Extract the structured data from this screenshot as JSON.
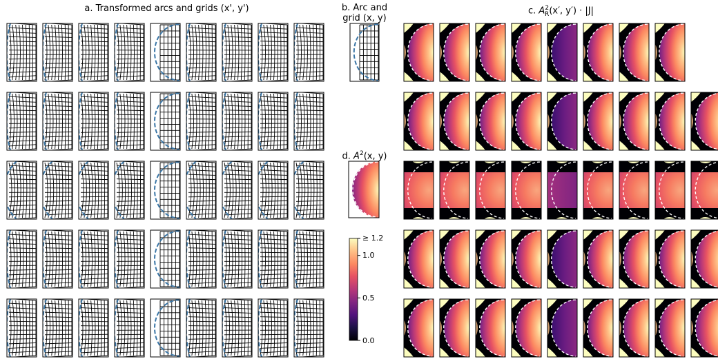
{
  "panels": {
    "a": {
      "title": "a. Transformed arcs and grids (x', y')",
      "rows": 5,
      "cols": 9
    },
    "b": {
      "title_line1": "b. Arc and",
      "title_line2": "grid (x, y)"
    },
    "c": {
      "title_prefix": "c. ",
      "title_A": "A",
      "title_sub": "R",
      "title_sup": "2",
      "title_rest": "(x′, y′) · |J|",
      "rows": 5,
      "cols": 9,
      "missing": [
        "0-8"
      ]
    },
    "d": {
      "title_prefix": "d. ",
      "title_A": "A",
      "title_sup": "2",
      "title_rest": "(x, y)"
    }
  },
  "colorbar": {
    "colormap": "magma",
    "min": 0.0,
    "max": 1.2,
    "ticks": [
      {
        "value": 1.2,
        "label": "≥ 1.2"
      },
      {
        "value": 1.0,
        "label": "1.0"
      },
      {
        "value": 0.5,
        "label": "0.5"
      },
      {
        "value": 0.0,
        "label": "0.0"
      }
    ]
  },
  "colors": {
    "arc_blue": "#3b76a6",
    "arc_white": "#ffffff",
    "grid_line": "#000000"
  }
}
